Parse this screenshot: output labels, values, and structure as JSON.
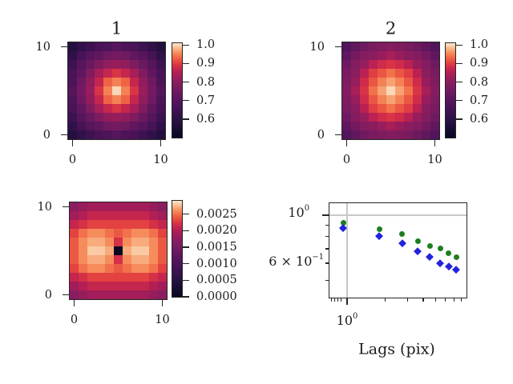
{
  "figure": {
    "background": "#ffffff",
    "text_color": "#1c1c1c",
    "spine_color": "#262626",
    "grid_color": "#c8c8c8"
  },
  "colormap_stops": [
    [
      0.0,
      "#0a0722"
    ],
    [
      0.08,
      "#160b31"
    ],
    [
      0.16,
      "#251040"
    ],
    [
      0.25,
      "#38124e"
    ],
    [
      0.33,
      "#491358"
    ],
    [
      0.42,
      "#5d165e"
    ],
    [
      0.5,
      "#721a60"
    ],
    [
      0.58,
      "#871d5f"
    ],
    [
      0.65,
      "#a01d5a"
    ],
    [
      0.7,
      "#b82053"
    ],
    [
      0.75,
      "#d22c49"
    ],
    [
      0.8,
      "#e64640"
    ],
    [
      0.85,
      "#f16846"
    ],
    [
      0.9,
      "#f68f5e"
    ],
    [
      0.95,
      "#f9bc8f"
    ],
    [
      1.0,
      "#fbe9d2"
    ]
  ],
  "chart_data": [
    {
      "type": "heatmap",
      "title": "1",
      "grid_size": 11,
      "extent": [
        -0.5,
        10.5
      ],
      "x_tick_values": [
        0,
        10
      ],
      "x_tick_labels": [
        "0",
        "10"
      ],
      "y_tick_values": [
        10,
        0
      ],
      "y_tick_labels": [
        "10",
        "0"
      ],
      "vmin": 0.5,
      "vmax": 1.01,
      "colorbar_tick_values": [
        1.0,
        0.9,
        0.8,
        0.7,
        0.6
      ],
      "colorbar_tick_labels": [
        "1.0",
        "0.9",
        "0.8",
        "0.7",
        "0.6"
      ],
      "orientation_note": "rows listed top to bottom, y=10 row first",
      "matrix_rows_top_to_bottom": [
        [
          0.58,
          0.61,
          0.64,
          0.67,
          0.68,
          0.7,
          0.68,
          0.67,
          0.64,
          0.61,
          0.58
        ],
        [
          0.61,
          0.66,
          0.7,
          0.72,
          0.75,
          0.76,
          0.75,
          0.72,
          0.7,
          0.66,
          0.61
        ],
        [
          0.64,
          0.7,
          0.74,
          0.78,
          0.81,
          0.82,
          0.81,
          0.78,
          0.74,
          0.7,
          0.64
        ],
        [
          0.67,
          0.72,
          0.78,
          0.84,
          0.87,
          0.89,
          0.87,
          0.84,
          0.78,
          0.72,
          0.67
        ],
        [
          0.68,
          0.75,
          0.81,
          0.87,
          0.93,
          0.95,
          0.93,
          0.87,
          0.81,
          0.75,
          0.68
        ],
        [
          0.7,
          0.76,
          0.82,
          0.89,
          0.95,
          1.0,
          0.95,
          0.89,
          0.82,
          0.76,
          0.7
        ],
        [
          0.68,
          0.75,
          0.81,
          0.87,
          0.93,
          0.95,
          0.93,
          0.87,
          0.81,
          0.75,
          0.68
        ],
        [
          0.67,
          0.72,
          0.78,
          0.84,
          0.87,
          0.89,
          0.87,
          0.84,
          0.78,
          0.72,
          0.67
        ],
        [
          0.64,
          0.7,
          0.74,
          0.78,
          0.81,
          0.82,
          0.81,
          0.78,
          0.74,
          0.7,
          0.64
        ],
        [
          0.61,
          0.66,
          0.7,
          0.72,
          0.75,
          0.76,
          0.75,
          0.72,
          0.7,
          0.66,
          0.61
        ],
        [
          0.58,
          0.61,
          0.64,
          0.67,
          0.68,
          0.7,
          0.68,
          0.67,
          0.64,
          0.61,
          0.58
        ]
      ]
    },
    {
      "type": "heatmap",
      "title": "2",
      "grid_size": 11,
      "extent": [
        -0.5,
        10.5
      ],
      "x_tick_values": [
        0,
        10
      ],
      "x_tick_labels": [
        "0",
        "10"
      ],
      "y_tick_values": [
        10,
        0
      ],
      "y_tick_labels": [
        "10",
        "0"
      ],
      "vmin": 0.5,
      "vmax": 1.01,
      "colorbar_tick_values": [
        1.0,
        0.9,
        0.8,
        0.7,
        0.6
      ],
      "colorbar_tick_labels": [
        "1.0",
        "0.9",
        "0.8",
        "0.7",
        "0.6"
      ],
      "orientation_note": "rows listed top to bottom, y=10 row first",
      "matrix_rows_top_to_bottom": [
        [
          0.69,
          0.72,
          0.75,
          0.77,
          0.78,
          0.79,
          0.78,
          0.77,
          0.75,
          0.72,
          0.69
        ],
        [
          0.72,
          0.76,
          0.79,
          0.8,
          0.82,
          0.84,
          0.82,
          0.8,
          0.79,
          0.76,
          0.72
        ],
        [
          0.75,
          0.79,
          0.82,
          0.86,
          0.88,
          0.89,
          0.88,
          0.86,
          0.82,
          0.79,
          0.75
        ],
        [
          0.77,
          0.8,
          0.86,
          0.9,
          0.92,
          0.94,
          0.92,
          0.9,
          0.86,
          0.8,
          0.77
        ],
        [
          0.78,
          0.82,
          0.88,
          0.92,
          0.95,
          0.97,
          0.95,
          0.92,
          0.88,
          0.82,
          0.78
        ],
        [
          0.79,
          0.84,
          0.89,
          0.94,
          0.97,
          1.0,
          0.97,
          0.94,
          0.89,
          0.84,
          0.79
        ],
        [
          0.78,
          0.82,
          0.88,
          0.92,
          0.95,
          0.97,
          0.95,
          0.92,
          0.88,
          0.82,
          0.78
        ],
        [
          0.77,
          0.8,
          0.86,
          0.9,
          0.92,
          0.94,
          0.92,
          0.9,
          0.86,
          0.8,
          0.77
        ],
        [
          0.75,
          0.79,
          0.82,
          0.86,
          0.88,
          0.89,
          0.88,
          0.86,
          0.82,
          0.79,
          0.75
        ],
        [
          0.72,
          0.76,
          0.79,
          0.8,
          0.82,
          0.84,
          0.82,
          0.8,
          0.79,
          0.76,
          0.72
        ],
        [
          0.69,
          0.72,
          0.75,
          0.77,
          0.78,
          0.79,
          0.78,
          0.77,
          0.75,
          0.72,
          0.69
        ]
      ]
    },
    {
      "type": "heatmap",
      "title": "",
      "grid_size": 11,
      "extent": [
        -0.5,
        10.5
      ],
      "x_tick_values": [
        0,
        10
      ],
      "x_tick_labels": [
        "0",
        "10"
      ],
      "y_tick_values": [
        10,
        0
      ],
      "y_tick_labels": [
        "10",
        "0"
      ],
      "vmin": 0.0,
      "vmax": 0.0029,
      "colorbar_tick_values": [
        0.0025,
        0.002,
        0.0015,
        0.001,
        0.0005,
        0.0
      ],
      "colorbar_tick_labels": [
        "0.0025",
        "0.0020",
        "0.0015",
        "0.0010",
        "0.0005",
        "0.0000"
      ],
      "orientation_note": "rows listed top to bottom, y=10 row first; center pixel is 0",
      "matrix_rows_top_to_bottom": [
        [
          0.0017,
          0.0018,
          0.0019,
          0.0019,
          0.0019,
          0.0019,
          0.0019,
          0.0019,
          0.0019,
          0.0018,
          0.0017
        ],
        [
          0.0019,
          0.002,
          0.0021,
          0.0021,
          0.0021,
          0.0021,
          0.0021,
          0.0021,
          0.0021,
          0.002,
          0.0019
        ],
        [
          0.0021,
          0.0022,
          0.0023,
          0.0023,
          0.0023,
          0.0023,
          0.0023,
          0.0023,
          0.0023,
          0.0022,
          0.0021
        ],
        [
          0.0023,
          0.0025,
          0.0026,
          0.0026,
          0.0025,
          0.0024,
          0.0025,
          0.0026,
          0.0026,
          0.0025,
          0.0023
        ],
        [
          0.0024,
          0.0026,
          0.0027,
          0.0027,
          0.0026,
          0.0022,
          0.0026,
          0.0027,
          0.0027,
          0.0026,
          0.0024
        ],
        [
          0.0024,
          0.0026,
          0.0028,
          0.0028,
          0.0027,
          0.0,
          0.0027,
          0.0028,
          0.0028,
          0.0026,
          0.0024
        ],
        [
          0.0024,
          0.0026,
          0.0027,
          0.0027,
          0.0026,
          0.0022,
          0.0026,
          0.0027,
          0.0027,
          0.0026,
          0.0024
        ],
        [
          0.0023,
          0.0025,
          0.0026,
          0.0026,
          0.0025,
          0.0024,
          0.0025,
          0.0026,
          0.0026,
          0.0025,
          0.0023
        ],
        [
          0.0021,
          0.0022,
          0.0023,
          0.0023,
          0.0023,
          0.0023,
          0.0023,
          0.0023,
          0.0023,
          0.0022,
          0.0021
        ],
        [
          0.0019,
          0.002,
          0.0021,
          0.0021,
          0.0021,
          0.0021,
          0.0021,
          0.0021,
          0.0021,
          0.002,
          0.0019
        ],
        [
          0.0017,
          0.0018,
          0.0019,
          0.0019,
          0.0019,
          0.0019,
          0.0019,
          0.0019,
          0.0019,
          0.0018,
          0.0017
        ]
      ]
    },
    {
      "type": "scatter",
      "xlabel": "Lags (pix)",
      "xscale": "log",
      "yscale": "log",
      "xlim": [
        0.715,
        8.93
      ],
      "ylim": [
        0.413,
        1.146
      ],
      "grid": "on",
      "grid_x_value": 1.0,
      "grid_y_value": 1.0,
      "x_major_tick": {
        "value": 1.0,
        "base": "10",
        "exp": "0"
      },
      "x_minor_ticks": [
        0.75,
        0.8,
        0.85,
        0.9,
        2,
        3,
        4,
        5,
        6,
        7,
        8,
        9
      ],
      "y_major_tick": {
        "value": 1.0,
        "base": "10",
        "exp": "0"
      },
      "y_labeled_minor_tick": {
        "value": 0.6,
        "prefix": "6 × ",
        "base": "10",
        "exp": "−1"
      },
      "y_minor_ticks": [
        0.9,
        0.8,
        0.7,
        0.6,
        0.5
      ],
      "series": [
        {
          "name": "green-circles",
          "marker": "circle",
          "color": "#1e7e1e",
          "x": [
            0.93,
            1.8,
            2.72,
            3.63,
            4.52,
            5.45,
            6.37,
            7.33
          ],
          "y": [
            0.92,
            0.86,
            0.82,
            0.76,
            0.72,
            0.7,
            0.67,
            0.64
          ]
        },
        {
          "name": "blue-diamonds",
          "marker": "diamond",
          "color": "#2323dc",
          "x": [
            0.93,
            1.8,
            2.72,
            3.63,
            4.52,
            5.45,
            6.37,
            7.33
          ],
          "y": [
            0.87,
            0.8,
            0.74,
            0.68,
            0.64,
            0.6,
            0.58,
            0.56
          ]
        }
      ]
    }
  ]
}
